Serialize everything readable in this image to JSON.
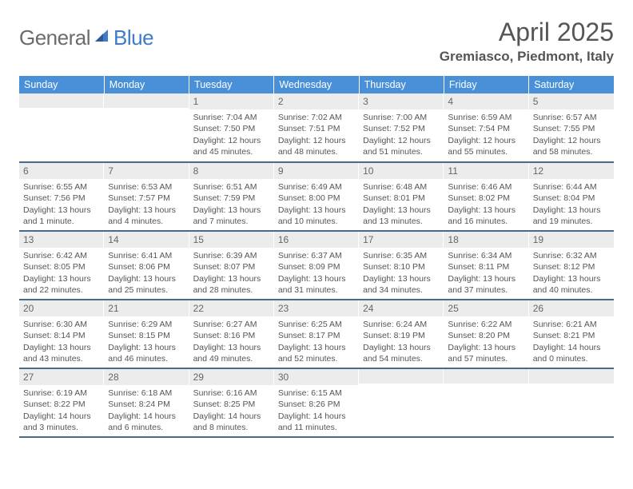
{
  "logo": {
    "text1": "General",
    "text2": "Blue"
  },
  "title": "April 2025",
  "location": "Gremiasco, Piedmont, Italy",
  "header_row": [
    "Sunday",
    "Monday",
    "Tuesday",
    "Wednesday",
    "Thursday",
    "Friday",
    "Saturday"
  ],
  "colors": {
    "header_bg": "#4a90d9",
    "header_text": "#ffffff",
    "daynum_bg": "#ececec",
    "border": "#4a6a8a",
    "text": "#555555",
    "logo_gray": "#6b6b6b",
    "logo_blue": "#3d7cc9"
  },
  "weeks": [
    [
      {
        "n": "",
        "sr": "",
        "ss": "",
        "dl": ""
      },
      {
        "n": "",
        "sr": "",
        "ss": "",
        "dl": ""
      },
      {
        "n": "1",
        "sr": "Sunrise: 7:04 AM",
        "ss": "Sunset: 7:50 PM",
        "dl": "Daylight: 12 hours and 45 minutes."
      },
      {
        "n": "2",
        "sr": "Sunrise: 7:02 AM",
        "ss": "Sunset: 7:51 PM",
        "dl": "Daylight: 12 hours and 48 minutes."
      },
      {
        "n": "3",
        "sr": "Sunrise: 7:00 AM",
        "ss": "Sunset: 7:52 PM",
        "dl": "Daylight: 12 hours and 51 minutes."
      },
      {
        "n": "4",
        "sr": "Sunrise: 6:59 AM",
        "ss": "Sunset: 7:54 PM",
        "dl": "Daylight: 12 hours and 55 minutes."
      },
      {
        "n": "5",
        "sr": "Sunrise: 6:57 AM",
        "ss": "Sunset: 7:55 PM",
        "dl": "Daylight: 12 hours and 58 minutes."
      }
    ],
    [
      {
        "n": "6",
        "sr": "Sunrise: 6:55 AM",
        "ss": "Sunset: 7:56 PM",
        "dl": "Daylight: 13 hours and 1 minute."
      },
      {
        "n": "7",
        "sr": "Sunrise: 6:53 AM",
        "ss": "Sunset: 7:57 PM",
        "dl": "Daylight: 13 hours and 4 minutes."
      },
      {
        "n": "8",
        "sr": "Sunrise: 6:51 AM",
        "ss": "Sunset: 7:59 PM",
        "dl": "Daylight: 13 hours and 7 minutes."
      },
      {
        "n": "9",
        "sr": "Sunrise: 6:49 AM",
        "ss": "Sunset: 8:00 PM",
        "dl": "Daylight: 13 hours and 10 minutes."
      },
      {
        "n": "10",
        "sr": "Sunrise: 6:48 AM",
        "ss": "Sunset: 8:01 PM",
        "dl": "Daylight: 13 hours and 13 minutes."
      },
      {
        "n": "11",
        "sr": "Sunrise: 6:46 AM",
        "ss": "Sunset: 8:02 PM",
        "dl": "Daylight: 13 hours and 16 minutes."
      },
      {
        "n": "12",
        "sr": "Sunrise: 6:44 AM",
        "ss": "Sunset: 8:04 PM",
        "dl": "Daylight: 13 hours and 19 minutes."
      }
    ],
    [
      {
        "n": "13",
        "sr": "Sunrise: 6:42 AM",
        "ss": "Sunset: 8:05 PM",
        "dl": "Daylight: 13 hours and 22 minutes."
      },
      {
        "n": "14",
        "sr": "Sunrise: 6:41 AM",
        "ss": "Sunset: 8:06 PM",
        "dl": "Daylight: 13 hours and 25 minutes."
      },
      {
        "n": "15",
        "sr": "Sunrise: 6:39 AM",
        "ss": "Sunset: 8:07 PM",
        "dl": "Daylight: 13 hours and 28 minutes."
      },
      {
        "n": "16",
        "sr": "Sunrise: 6:37 AM",
        "ss": "Sunset: 8:09 PM",
        "dl": "Daylight: 13 hours and 31 minutes."
      },
      {
        "n": "17",
        "sr": "Sunrise: 6:35 AM",
        "ss": "Sunset: 8:10 PM",
        "dl": "Daylight: 13 hours and 34 minutes."
      },
      {
        "n": "18",
        "sr": "Sunrise: 6:34 AM",
        "ss": "Sunset: 8:11 PM",
        "dl": "Daylight: 13 hours and 37 minutes."
      },
      {
        "n": "19",
        "sr": "Sunrise: 6:32 AM",
        "ss": "Sunset: 8:12 PM",
        "dl": "Daylight: 13 hours and 40 minutes."
      }
    ],
    [
      {
        "n": "20",
        "sr": "Sunrise: 6:30 AM",
        "ss": "Sunset: 8:14 PM",
        "dl": "Daylight: 13 hours and 43 minutes."
      },
      {
        "n": "21",
        "sr": "Sunrise: 6:29 AM",
        "ss": "Sunset: 8:15 PM",
        "dl": "Daylight: 13 hours and 46 minutes."
      },
      {
        "n": "22",
        "sr": "Sunrise: 6:27 AM",
        "ss": "Sunset: 8:16 PM",
        "dl": "Daylight: 13 hours and 49 minutes."
      },
      {
        "n": "23",
        "sr": "Sunrise: 6:25 AM",
        "ss": "Sunset: 8:17 PM",
        "dl": "Daylight: 13 hours and 52 minutes."
      },
      {
        "n": "24",
        "sr": "Sunrise: 6:24 AM",
        "ss": "Sunset: 8:19 PM",
        "dl": "Daylight: 13 hours and 54 minutes."
      },
      {
        "n": "25",
        "sr": "Sunrise: 6:22 AM",
        "ss": "Sunset: 8:20 PM",
        "dl": "Daylight: 13 hours and 57 minutes."
      },
      {
        "n": "26",
        "sr": "Sunrise: 6:21 AM",
        "ss": "Sunset: 8:21 PM",
        "dl": "Daylight: 14 hours and 0 minutes."
      }
    ],
    [
      {
        "n": "27",
        "sr": "Sunrise: 6:19 AM",
        "ss": "Sunset: 8:22 PM",
        "dl": "Daylight: 14 hours and 3 minutes."
      },
      {
        "n": "28",
        "sr": "Sunrise: 6:18 AM",
        "ss": "Sunset: 8:24 PM",
        "dl": "Daylight: 14 hours and 6 minutes."
      },
      {
        "n": "29",
        "sr": "Sunrise: 6:16 AM",
        "ss": "Sunset: 8:25 PM",
        "dl": "Daylight: 14 hours and 8 minutes."
      },
      {
        "n": "30",
        "sr": "Sunrise: 6:15 AM",
        "ss": "Sunset: 8:26 PM",
        "dl": "Daylight: 14 hours and 11 minutes."
      },
      {
        "n": "",
        "sr": "",
        "ss": "",
        "dl": ""
      },
      {
        "n": "",
        "sr": "",
        "ss": "",
        "dl": ""
      },
      {
        "n": "",
        "sr": "",
        "ss": "",
        "dl": ""
      }
    ]
  ]
}
